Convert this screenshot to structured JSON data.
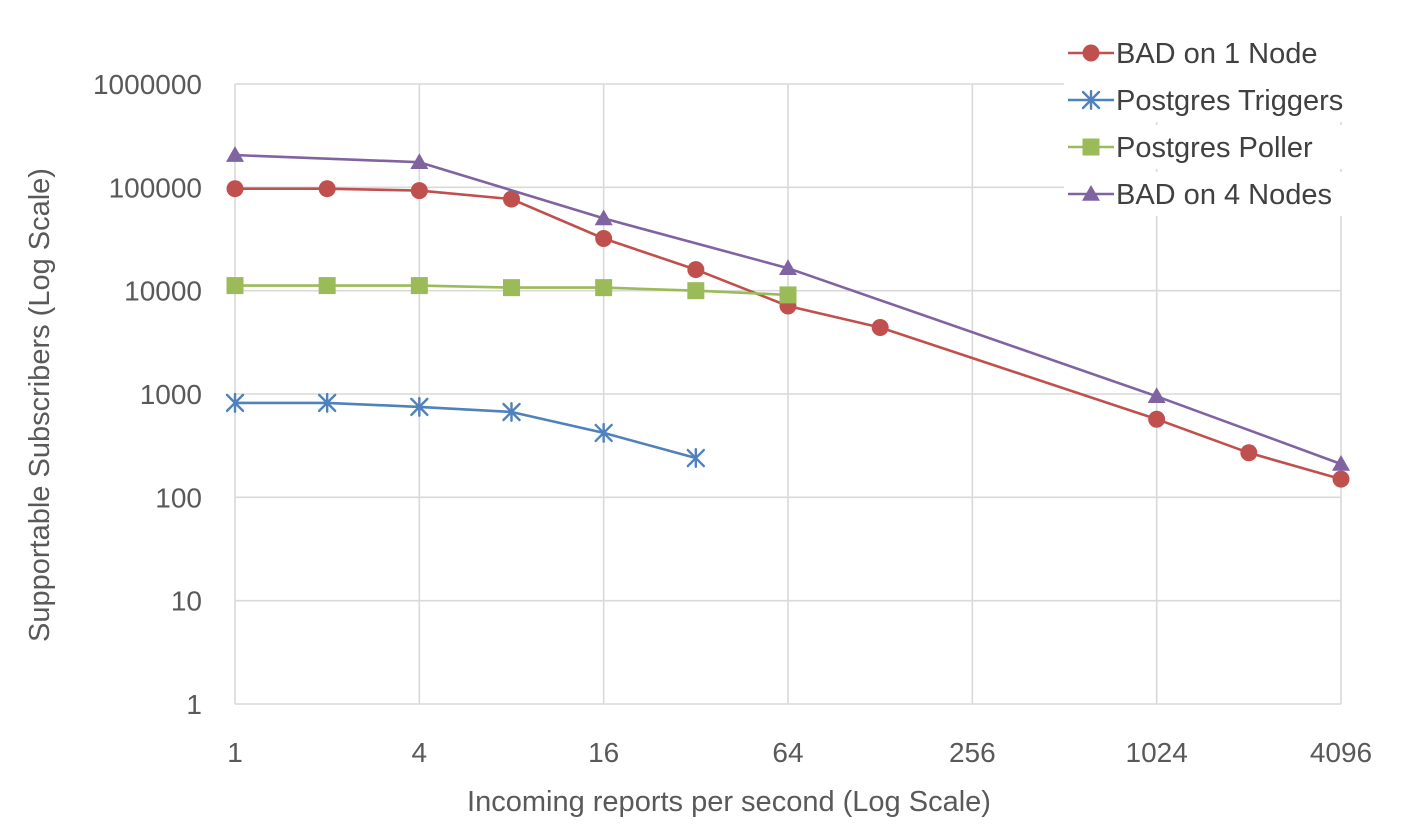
{
  "chart_data": {
    "type": "line",
    "xlabel": "Incoming reports per second (Log Scale)",
    "ylabel": "Supportable Subscribers (Log Scale)",
    "x_scale": "log2",
    "y_scale": "log10",
    "xlim": [
      1,
      4096
    ],
    "ylim": [
      1,
      1000000
    ],
    "x_ticks": [
      1,
      4,
      16,
      64,
      256,
      1024,
      4096
    ],
    "x_tick_labels": [
      "1",
      "4",
      "16",
      "64",
      "256",
      "1024",
      "4096"
    ],
    "y_ticks": [
      1,
      10,
      100,
      1000,
      10000,
      100000,
      1000000
    ],
    "y_tick_labels": [
      "1",
      "10",
      "100",
      "1000",
      "10000",
      "100000",
      "1000000"
    ],
    "grid": true,
    "legend_position": "top-right",
    "series": [
      {
        "name": "BAD on 1 Node",
        "color": "#c0504d",
        "marker": "circle",
        "points": [
          [
            1,
            97000
          ],
          [
            2,
            97000
          ],
          [
            4,
            93000
          ],
          [
            8,
            77000
          ],
          [
            16,
            32000
          ],
          [
            32,
            16000
          ],
          [
            64,
            7100
          ],
          [
            128,
            4400
          ],
          [
            1024,
            570
          ],
          [
            2048,
            270
          ],
          [
            4096,
            150
          ]
        ]
      },
      {
        "name": "Postgres Triggers",
        "color": "#4f81bd",
        "marker": "asterisk",
        "points": [
          [
            1,
            820
          ],
          [
            2,
            820
          ],
          [
            4,
            750
          ],
          [
            8,
            670
          ],
          [
            16,
            420
          ],
          [
            32,
            240
          ]
        ]
      },
      {
        "name": "Postgres Poller",
        "color": "#9bbb59",
        "marker": "square",
        "points": [
          [
            1,
            11200
          ],
          [
            2,
            11200
          ],
          [
            4,
            11200
          ],
          [
            8,
            10700
          ],
          [
            16,
            10700
          ],
          [
            32,
            10000
          ],
          [
            64,
            9100
          ]
        ]
      },
      {
        "name": "BAD on 4 Nodes",
        "color": "#8064a2",
        "marker": "triangle",
        "points": [
          [
            1,
            205000
          ],
          [
            4,
            175000
          ],
          [
            16,
            50000
          ],
          [
            64,
            16500
          ],
          [
            1024,
            950
          ],
          [
            4096,
            210
          ]
        ]
      }
    ]
  }
}
